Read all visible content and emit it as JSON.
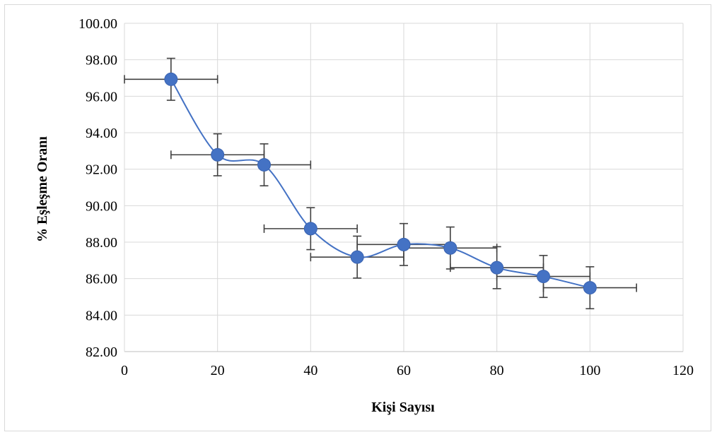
{
  "chart_data": {
    "type": "scatter",
    "title": "",
    "xlabel": "Kişi Sayısı",
    "ylabel": "% Eşleşme Oranı",
    "xlim": [
      0,
      120
    ],
    "ylim": [
      82,
      100
    ],
    "xticks": [
      0,
      20,
      40,
      60,
      80,
      100,
      120
    ],
    "yticks": [
      82,
      84,
      86,
      88,
      90,
      92,
      94,
      96,
      98,
      100
    ],
    "x_tick_labels": [
      "0",
      "20",
      "40",
      "60",
      "80",
      "100",
      "120"
    ],
    "y_tick_labels": [
      "82.00",
      "84.00",
      "86.00",
      "88.00",
      "90.00",
      "92.00",
      "94.00",
      "96.00",
      "98.00",
      "100.00"
    ],
    "grid": true,
    "legend": "none",
    "smoothed_line": true,
    "series": [
      {
        "color": "#4472c4",
        "marker_color": "#4472c4",
        "error_bar_color": "#404040",
        "x_error": 10,
        "y_error": 1.15,
        "x": [
          10,
          20,
          30,
          40,
          50,
          60,
          70,
          80,
          90,
          100
        ],
        "y": [
          96.93,
          92.79,
          92.24,
          88.74,
          87.18,
          87.87,
          87.68,
          86.6,
          86.12,
          85.5
        ]
      }
    ]
  }
}
